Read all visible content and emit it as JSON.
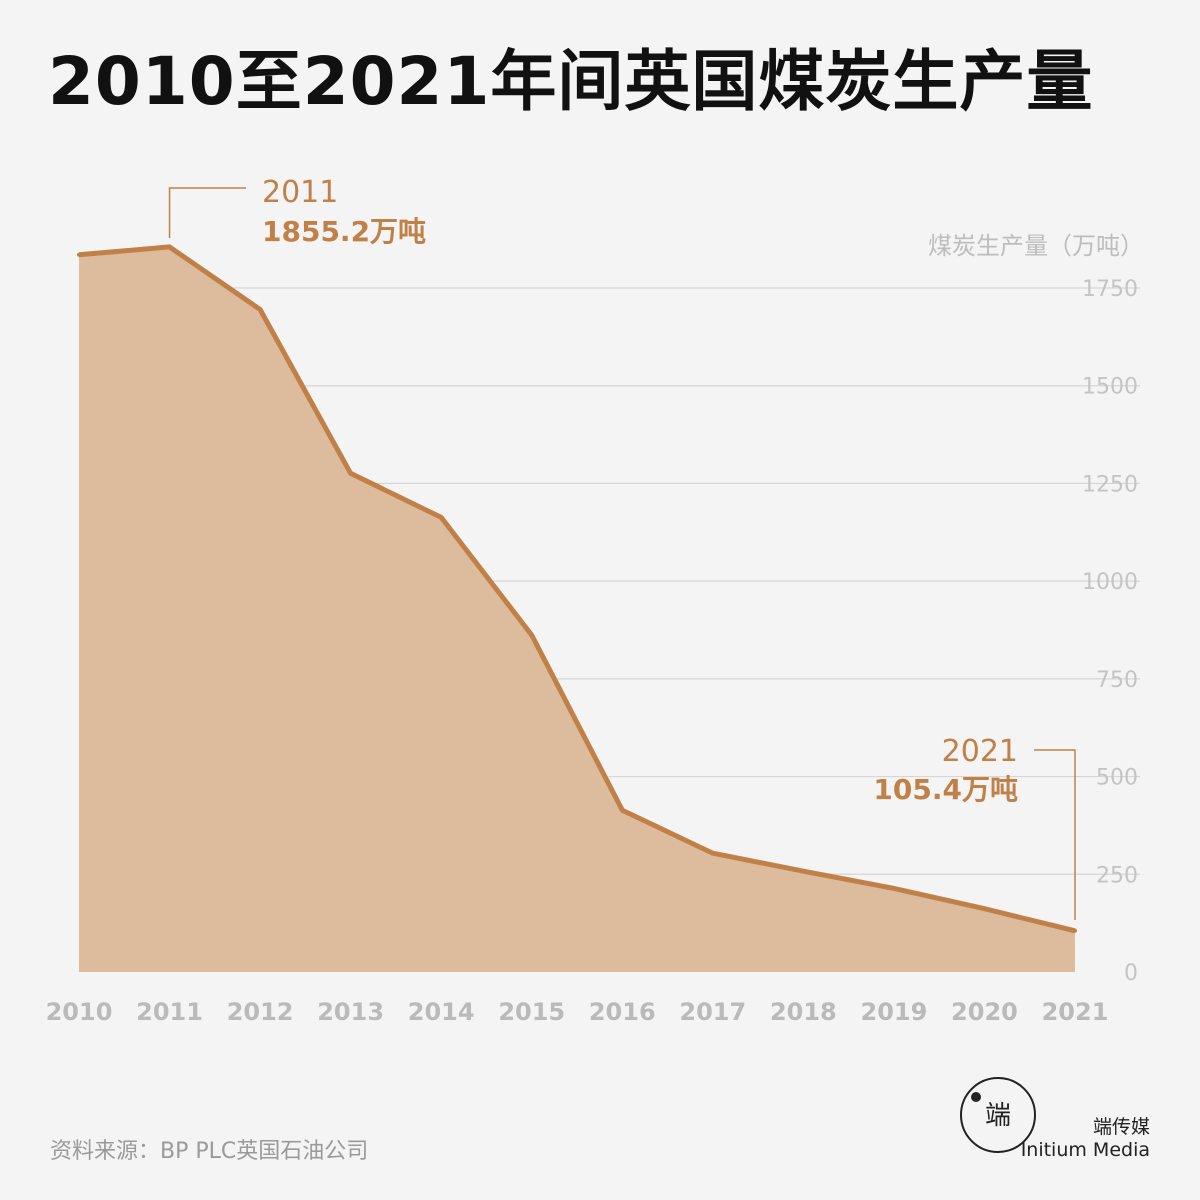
{
  "title": "2010至2021年间英国煤炭生产量",
  "source": "资料来源：BP PLC英国石油公司",
  "brand": {
    "name_zh": "端传媒",
    "name_en": "Initium Media",
    "logo_glyphs": "端"
  },
  "colors": {
    "accent": "#c08048",
    "area_fill": "#dcbc9c",
    "grid": "#d6d6d6",
    "axis_text": "#b8b8b8",
    "background": "#f4f4f4"
  },
  "chart_data": {
    "type": "area",
    "title": "2010至2021年间英国煤炭生产量",
    "ylabel": "煤炭生产量（万吨）",
    "y_axis_position": "right",
    "ylim": [
      0,
      1750
    ],
    "yticks": [
      "0",
      "250",
      "500",
      "750",
      "1000",
      "1250",
      "1500",
      "1750"
    ],
    "x": [
      "2010",
      "2011",
      "2012",
      "2013",
      "2014",
      "2015",
      "2016",
      "2017",
      "2018",
      "2019",
      "2020",
      "2021"
    ],
    "series": [
      {
        "values": [
          1835,
          1855.2,
          1695,
          1276,
          1163,
          862,
          414,
          304,
          258,
          214,
          162,
          105.4
        ]
      }
    ],
    "grid": true,
    "annotations": [
      {
        "year": "2011",
        "value_label": "1855.2万吨"
      },
      {
        "year": "2021",
        "value_label": "105.4万吨"
      }
    ]
  }
}
